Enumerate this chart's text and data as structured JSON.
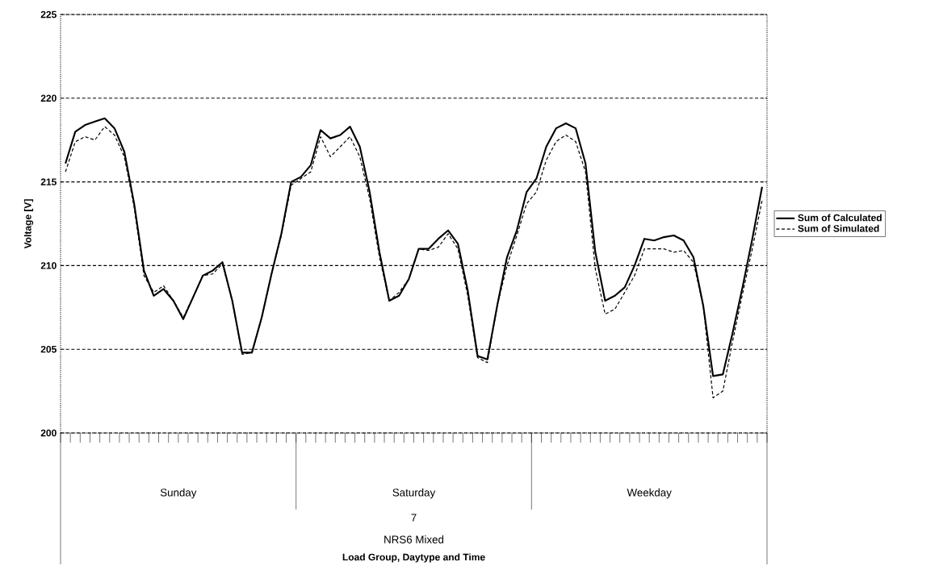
{
  "chart_data": {
    "type": "line",
    "ylabel": "Voltage [V]",
    "categories": [
      null,
      null,
      null,
      null,
      null,
      null,
      null,
      null,
      null,
      null,
      null,
      null,
      null,
      null,
      null,
      null,
      null,
      null,
      null,
      null,
      null,
      null,
      null,
      null,
      null,
      null,
      null,
      null,
      null,
      null,
      null,
      null,
      null,
      null,
      null,
      null,
      null,
      null,
      null,
      null,
      null,
      null,
      null,
      null,
      null,
      null,
      null,
      null,
      null,
      null,
      null,
      null,
      null,
      null,
      null,
      null,
      null,
      null,
      null,
      null,
      null,
      null,
      null,
      null,
      null,
      null,
      null,
      null,
      null,
      null,
      null,
      null
    ],
    "series": [
      {
        "name": "Sum of Calculated",
        "color": "#000000",
        "line_style": "solid",
        "values": [
          216.1,
          218.0,
          218.4,
          218.6,
          218.8,
          218.2,
          216.8,
          213.7,
          209.7,
          208.2,
          208.6,
          207.9,
          206.8,
          208.1,
          209.4,
          209.7,
          210.2,
          207.9,
          204.8,
          204.8,
          206.9,
          209.5,
          211.9,
          215.0,
          215.3,
          216.0,
          218.1,
          217.6,
          217.8,
          218.3,
          217.1,
          214.4,
          210.8,
          207.9,
          208.2,
          209.2,
          211.0,
          211.0,
          211.6,
          212.1,
          211.3,
          208.5,
          204.6,
          204.4,
          207.6,
          210.5,
          212.1,
          214.4,
          215.2,
          217.1,
          218.2,
          218.5,
          218.2,
          216.1,
          210.8,
          207.9,
          208.2,
          208.7,
          210.0,
          211.6,
          211.5,
          211.7,
          211.8,
          211.5,
          210.5,
          207.6,
          203.4,
          203.5,
          206.0,
          208.7,
          211.6,
          214.7
        ]
      },
      {
        "name": "Sum of Simulated",
        "color": "#000000",
        "line_style": "dashed",
        "values": [
          215.6,
          217.4,
          217.7,
          217.5,
          218.3,
          217.8,
          216.5,
          213.5,
          209.4,
          208.4,
          208.8,
          207.9,
          206.9,
          208.1,
          209.4,
          209.5,
          210.1,
          207.9,
          204.7,
          204.8,
          206.9,
          209.5,
          211.8,
          214.8,
          215.2,
          215.6,
          217.7,
          216.5,
          217.1,
          217.7,
          216.5,
          214.0,
          210.5,
          207.9,
          208.4,
          209.2,
          211.0,
          210.9,
          211.1,
          211.9,
          211.0,
          208.2,
          204.5,
          204.2,
          207.6,
          210.0,
          211.8,
          213.7,
          214.4,
          216.3,
          217.4,
          217.8,
          217.4,
          215.6,
          209.8,
          207.1,
          207.4,
          208.4,
          209.4,
          211.0,
          211.0,
          211.0,
          210.8,
          210.9,
          210.2,
          207.6,
          202.1,
          202.5,
          205.5,
          208.3,
          211.0,
          213.9
        ]
      }
    ],
    "ylim": [
      200,
      225
    ],
    "yticks": [
      200,
      205,
      210,
      215,
      220,
      225
    ],
    "grid": "y",
    "legend": "right",
    "annotations": [
      "Sunday",
      "Saturday",
      "Weekday",
      "7",
      "NRS6 Mixed",
      "Load Group, Daytype and Time"
    ]
  }
}
